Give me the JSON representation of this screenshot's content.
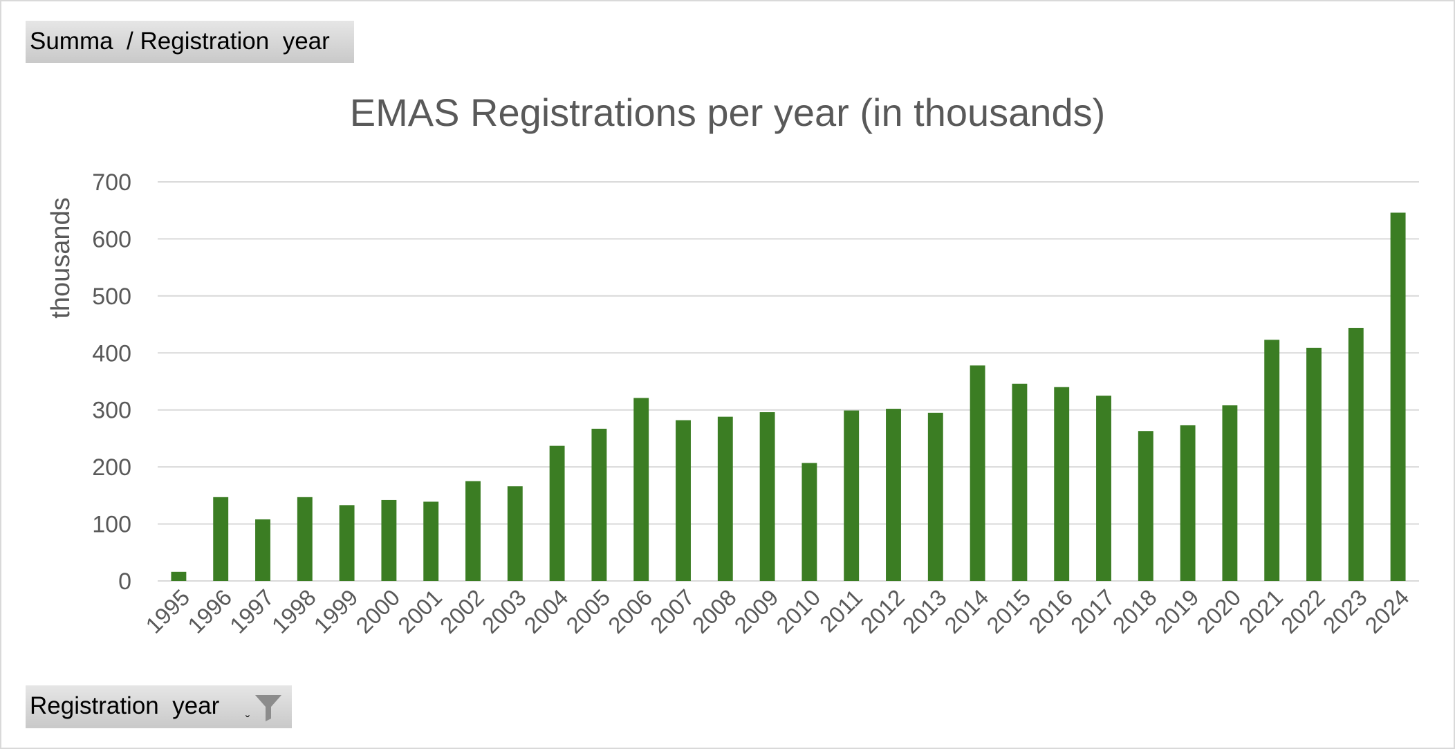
{
  "pivot": {
    "value_field_button": "Summa  / Registration  year",
    "axis_field_button": "Registration  year"
  },
  "icons": {
    "dropdown": "dropdown-arrow-icon",
    "filter": "filter-funnel-icon"
  },
  "chart_data": {
    "type": "bar",
    "title": "EMAS Registrations per year (in thousands)",
    "xlabel": "",
    "ylabel": "thousands",
    "ylim": [
      0,
      700
    ],
    "yticks": [
      0,
      100,
      200,
      300,
      400,
      500,
      600,
      700
    ],
    "grid": true,
    "legend": "none",
    "bar_color": "#3b7d23",
    "grid_color": "#d9d9d9",
    "categories": [
      "1995",
      "1996",
      "1997",
      "1998",
      "1999",
      "2000",
      "2001",
      "2002",
      "2003",
      "2004",
      "2005",
      "2006",
      "2007",
      "2008",
      "2009",
      "2010",
      "2011",
      "2012",
      "2013",
      "2014",
      "2015",
      "2016",
      "2017",
      "2018",
      "2019",
      "2020",
      "2021",
      "2022",
      "2023",
      "2024"
    ],
    "values": [
      16,
      147,
      108,
      147,
      133,
      142,
      139,
      175,
      166,
      237,
      267,
      321,
      282,
      288,
      296,
      207,
      299,
      302,
      295,
      378,
      346,
      340,
      325,
      263,
      273,
      308,
      423,
      409,
      444,
      646
    ]
  }
}
